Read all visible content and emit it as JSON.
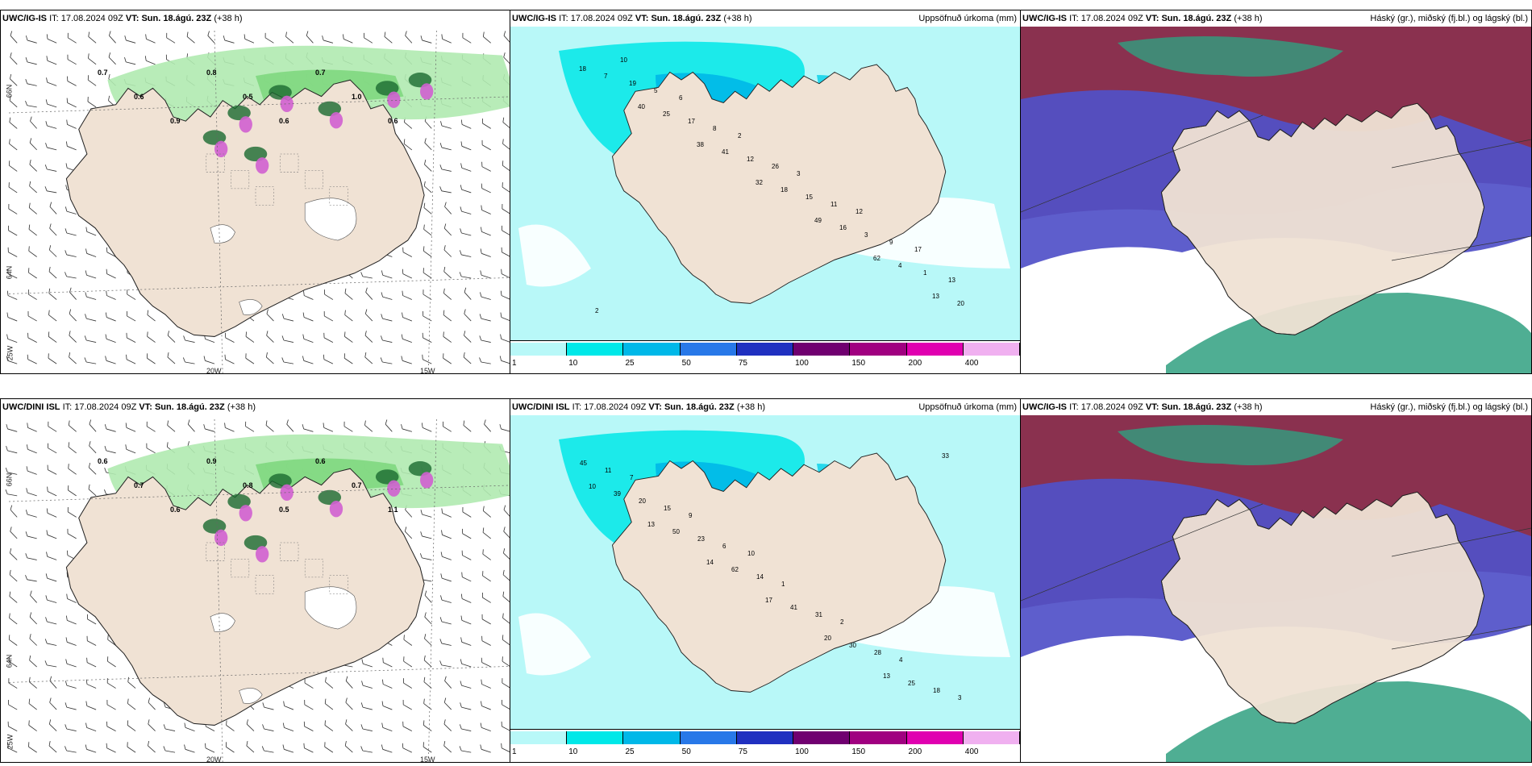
{
  "panels": [
    {
      "id": "p1",
      "model": "UWC/IG-IS",
      "it_label": "IT:",
      "it": "17.08.2024 09Z",
      "vt_label": "VT:",
      "vt": "Sun. 18.ágú. 23Z",
      "lead": "(+38 h)",
      "right_title": "",
      "type": "wind"
    },
    {
      "id": "p2",
      "model": "UWC/IG-IS",
      "it_label": "IT:",
      "it": "17.08.2024 09Z",
      "vt_label": "VT:",
      "vt": "Sun. 18.ágú. 23Z",
      "lead": "(+38 h)",
      "right_title": "Uppsöfnuð úrkoma (mm)",
      "type": "precip"
    },
    {
      "id": "p3",
      "model": "UWC/IG-IS",
      "it_label": "IT:",
      "it": "17.08.2024 09Z",
      "vt_label": "VT:",
      "vt": "Sun. 18.ágú. 23Z",
      "lead": "(+38 h)",
      "right_title": "Háský (gr.), miðský (fj.bl.) og lágský (bl.)",
      "type": "cloud"
    },
    {
      "id": "p4",
      "model": "UWC/DINI ISL",
      "it_label": "IT:",
      "it": "17.08.2024 09Z",
      "vt_label": "VT:",
      "vt": "Sun. 18.ágú. 23Z",
      "lead": "(+38 h)",
      "right_title": "",
      "type": "wind"
    },
    {
      "id": "p5",
      "model": "UWC/DINI ISL",
      "it_label": "IT:",
      "it": "17.08.2024 09Z",
      "vt_label": "VT:",
      "vt": "Sun. 18.ágú. 23Z",
      "lead": "(+38 h)",
      "right_title": "Uppsöfnuð úrkoma (mm)",
      "type": "precip"
    },
    {
      "id": "p6",
      "model": "UWC/IG-IS",
      "it_label": "IT:",
      "it": "17.08.2024 09Z",
      "vt_label": "VT:",
      "vt": "Sun. 18.ágú. 23Z",
      "lead": "(+38 h)",
      "right_title": "Háský (gr.), miðský (fj.bl.) og lágský (bl.)",
      "type": "cloud"
    }
  ],
  "colorbar": {
    "ticks": [
      "1",
      "10",
      "25",
      "50",
      "75",
      "100",
      "150",
      "200",
      "400"
    ],
    "colors": [
      "#b8f8f8",
      "#00e8e8",
      "#00b8e8",
      "#2878e8",
      "#2030c0",
      "#700070",
      "#a00080",
      "#e000b0",
      "#f0b0f0"
    ]
  },
  "wind_labels": {
    "lon_20w": "20W",
    "lon_15w": "15W",
    "lat_66n": "66N",
    "lat_64n": "64N",
    "lat_25w": "25W"
  },
  "precip_values_top": [
    "18",
    "40",
    "38",
    "32",
    "49",
    "62",
    "13",
    "7",
    "25",
    "41",
    "18",
    "16",
    "4",
    "20",
    "19",
    "17",
    "12",
    "15",
    "3",
    "1",
    "2",
    "5",
    "8",
    "26",
    "11",
    "9",
    "13",
    "10",
    "6",
    "2",
    "3",
    "12",
    "17"
  ],
  "precip_values_bottom": [
    "10",
    "13",
    "14",
    "17",
    "20",
    "13",
    "33",
    "39",
    "50",
    "62",
    "41",
    "30",
    "25",
    "45",
    "20",
    "23",
    "14",
    "31",
    "28",
    "18",
    "11",
    "15",
    "6",
    "1",
    "2",
    "4",
    "3",
    "7",
    "9",
    "10"
  ],
  "wind_values_top": [
    "0.7",
    "0.6",
    "0.9",
    "0.8",
    "0.5",
    "0.6",
    "0.7",
    "1.0",
    "0.6"
  ],
  "wind_values_bottom": [
    "0.6",
    "0.7",
    "0.6",
    "0.9",
    "0.8",
    "0.5",
    "0.6",
    "0.7",
    "1.1"
  ],
  "colors": {
    "land": "#f0e2d4",
    "sea_precip": "#b8f8f8",
    "cloud_high": "#802040",
    "cloud_mid": "#5050c8",
    "cloud_low": "#30a080",
    "wind_green": "#a8e8a8",
    "wind_dark": "#1a6a30",
    "magenta": "#d060d0"
  },
  "icons": [
    "wind-barb-icon",
    "hatch-pattern"
  ]
}
